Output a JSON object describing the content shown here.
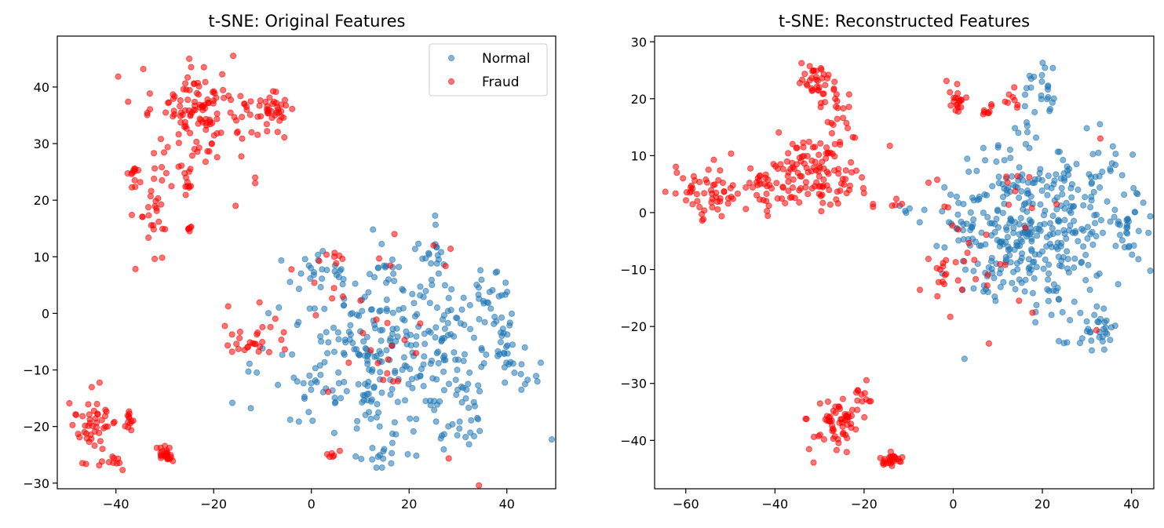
{
  "chart_data": [
    {
      "type": "scatter",
      "title": "t-SNE: Original Features",
      "xlabel": "",
      "ylabel": "",
      "xlim": [
        -52,
        50
      ],
      "ylim": [
        -31,
        49
      ],
      "xticks": [
        -40,
        -20,
        0,
        20,
        40
      ],
      "yticks": [
        -30,
        -20,
        -10,
        0,
        10,
        20,
        30,
        40
      ],
      "legend": "upper right",
      "grid": false,
      "series": [
        {
          "name": "Normal",
          "color": "#1f77b4",
          "clusters": [
            {
              "cx": 15,
              "cy": -7,
              "sx": 12,
              "sy": 8,
              "n": 330
            },
            {
              "cx": 36,
              "cy": 3,
              "sx": 3,
              "sy": 3,
              "n": 30
            },
            {
              "cx": 41,
              "cy": -9,
              "sx": 3,
              "sy": 2.5,
              "n": 22
            },
            {
              "cx": 0,
              "cy": 8,
              "sx": 2.5,
              "sy": 2,
              "n": 18
            },
            {
              "cx": 30,
              "cy": -20,
              "sx": 3,
              "sy": 2,
              "n": 16
            },
            {
              "cx": 25,
              "cy": 8,
              "sx": 2,
              "sy": 3,
              "n": 14
            },
            {
              "cx": 14,
              "cy": -25,
              "sx": 3,
              "sy": 1.2,
              "n": 12
            }
          ]
        },
        {
          "name": "Fraud",
          "color": "#ff0000",
          "clusters": [
            {
              "cx": -21,
              "cy": 35,
              "sx": 6,
              "sy": 4,
              "n": 120
            },
            {
              "cx": -8,
              "cy": 36,
              "sx": 1.5,
              "sy": 2,
              "n": 30
            },
            {
              "cx": -27,
              "cy": 26,
              "sx": 3,
              "sy": 3,
              "n": 25
            },
            {
              "cx": -33,
              "cy": 17,
              "sx": 2.5,
              "sy": 4,
              "n": 30
            },
            {
              "cx": -45,
              "cy": -20,
              "sx": 2,
              "sy": 3,
              "n": 45
            },
            {
              "cx": -41,
              "cy": -26,
              "sx": 1,
              "sy": 1,
              "n": 10
            },
            {
              "cx": -37,
              "cy": -19,
              "sx": 0.8,
              "sy": 1,
              "n": 12
            },
            {
              "cx": -29.5,
              "cy": -25,
              "sx": 1,
              "sy": 0.8,
              "n": 25
            },
            {
              "cx": -11,
              "cy": -5,
              "sx": 3,
              "sy": 1.5,
              "n": 25
            },
            {
              "cx": -36,
              "cy": 25,
              "sx": 0.5,
              "sy": 0.5,
              "n": 8
            },
            {
              "cx": -25,
              "cy": 15,
              "sx": 0.5,
              "sy": 0.3,
              "n": 6
            },
            {
              "cx": 10,
              "cy": -3,
              "sx": 12,
              "sy": 10,
              "n": 35
            },
            {
              "cx": 5,
              "cy": 10,
              "sx": 1,
              "sy": 0.8,
              "n": 6
            },
            {
              "cx": 4,
              "cy": -25,
              "sx": 1,
              "sy": 0.5,
              "n": 5
            }
          ],
          "points": [
            [
              -25,
              45
            ],
            [
              -16,
              45.5
            ],
            [
              -15.5,
              19
            ],
            [
              -11.5,
              24
            ],
            [
              -11.5,
              23
            ],
            [
              -22,
              43.5
            ],
            [
              17,
              14
            ],
            [
              25,
              12
            ]
          ]
        }
      ]
    },
    {
      "type": "scatter",
      "title": "t-SNE: Reconstructed Features",
      "xlabel": "",
      "ylabel": "",
      "xlim": [
        -67,
        45
      ],
      "ylim": [
        -48.5,
        31
      ],
      "xticks": [
        -60,
        -40,
        -20,
        0,
        20,
        40
      ],
      "yticks": [
        -40,
        -30,
        -20,
        -10,
        0,
        10,
        20,
        30
      ],
      "grid": false,
      "series": [
        {
          "name": "Normal",
          "color": "#1f77b4",
          "clusters": [
            {
              "cx": 17,
              "cy": -3,
              "sx": 10,
              "sy": 7,
              "n": 380
            },
            {
              "cx": 32,
              "cy": -20,
              "sx": 2.5,
              "sy": 2,
              "n": 30
            },
            {
              "cx": 20,
              "cy": 22,
              "sx": 2.5,
              "sy": 2,
              "n": 22
            },
            {
              "cx": 39,
              "cy": -1,
              "sx": 2,
              "sy": 4,
              "n": 25
            },
            {
              "cx": 35,
              "cy": 8,
              "sx": 2,
              "sy": 2,
              "n": 12
            },
            {
              "cx": -10,
              "cy": 1,
              "sx": 1,
              "sy": 0.5,
              "n": 4
            }
          ]
        },
        {
          "name": "Fraud",
          "color": "#ff0000",
          "clusters": [
            {
              "cx": -31,
              "cy": 7,
              "sx": 5,
              "sy": 3,
              "n": 110
            },
            {
              "cx": -55,
              "cy": 4,
              "sx": 4,
              "sy": 2.2,
              "n": 50
            },
            {
              "cx": -42,
              "cy": 4,
              "sx": 3,
              "sy": 2,
              "n": 30
            },
            {
              "cx": -31,
              "cy": 24,
              "sx": 2,
              "sy": 1.5,
              "n": 30
            },
            {
              "cx": -26,
              "cy": 18,
              "sx": 2,
              "sy": 4,
              "n": 30
            },
            {
              "cx": -27,
              "cy": -37,
              "sx": 3,
              "sy": 2,
              "n": 60
            },
            {
              "cx": -20,
              "cy": -33,
              "sx": 1,
              "sy": 1.5,
              "n": 12
            },
            {
              "cx": -14,
              "cy": -43.5,
              "sx": 1,
              "sy": 0.6,
              "n": 25
            },
            {
              "cx": 1,
              "cy": 20,
              "sx": 1,
              "sy": 1.5,
              "n": 20
            },
            {
              "cx": 7,
              "cy": 18,
              "sx": 1,
              "sy": 0.6,
              "n": 8
            },
            {
              "cx": 14,
              "cy": 20,
              "sx": 1.5,
              "sy": 1,
              "n": 8
            },
            {
              "cx": 0,
              "cy": -10,
              "sx": 3,
              "sy": 3,
              "n": 20
            },
            {
              "cx": 10,
              "cy": -5,
              "sx": 10,
              "sy": 8,
              "n": 25
            },
            {
              "cx": -12,
              "cy": 1.5,
              "sx": 1,
              "sy": 0.4,
              "n": 4
            },
            {
              "cx": -56,
              "cy": -1,
              "sx": 0.3,
              "sy": 0.8,
              "n": 4
            }
          ],
          "points": [
            [
              -18,
              1.5
            ],
            [
              -18,
              1
            ],
            [
              33,
              13
            ],
            [
              -62,
              7
            ],
            [
              8,
              -23
            ]
          ]
        }
      ]
    }
  ]
}
